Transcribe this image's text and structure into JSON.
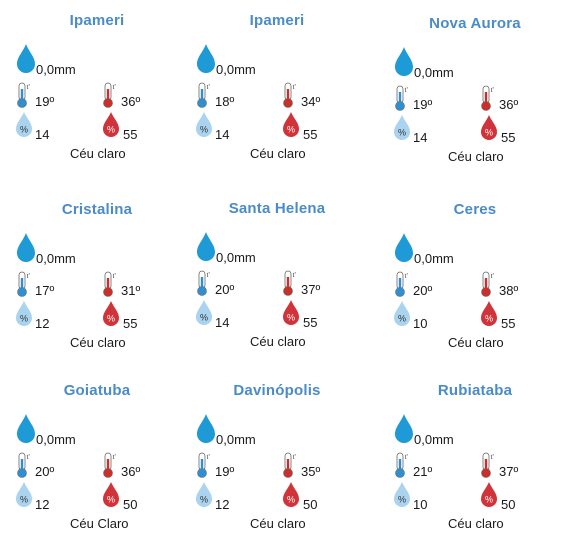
{
  "colors": {
    "title": "#4a8bc8",
    "rain": "#1e9ad6",
    "cold": "#2f8fd0",
    "hot": "#c9302c",
    "humidity_low": "#a9d3ee",
    "humidity_high": "#d0343a"
  },
  "rain_icon": "raindrop-icon",
  "thermo_min_icon": "thermometer-cold-icon",
  "thermo_max_icon": "thermometer-hot-icon",
  "humidity_min_icon": "humidity-low-icon",
  "humidity_max_icon": "humidity-high-icon",
  "thermo_mark": "t'",
  "percent_mark": "%",
  "cities": [
    {
      "name": "Ipameri",
      "rain": "0,0mm",
      "tmin": "19º",
      "tmax": "36º",
      "hmin": "14",
      "hmax": "55",
      "cond": "Céu claro"
    },
    {
      "name": "Ipameri",
      "rain": "0,0mm",
      "tmin": "18º",
      "tmax": "34º",
      "hmin": "14",
      "hmax": "55",
      "cond": "Céu claro"
    },
    {
      "name": "Nova Aurora",
      "rain": "0,0mm",
      "tmin": "19º",
      "tmax": "36º",
      "hmin": "14",
      "hmax": "55",
      "cond": "Céu claro"
    },
    {
      "name": "Cristalina",
      "rain": "0,0mm",
      "tmin": "17º",
      "tmax": "31º",
      "hmin": "12",
      "hmax": "55",
      "cond": "Céu claro"
    },
    {
      "name": "Santa Helena",
      "rain": "0,0mm",
      "tmin": "20º",
      "tmax": "37º",
      "hmin": "14",
      "hmax": "55",
      "cond": "Céu claro"
    },
    {
      "name": "Ceres",
      "rain": "0,0mm",
      "tmin": "20º",
      "tmax": "38º",
      "hmin": "10",
      "hmax": "55",
      "cond": "Céu claro"
    },
    {
      "name": "Goiatuba",
      "rain": "0,0mm",
      "tmin": "20º",
      "tmax": "36º",
      "hmin": "12",
      "hmax": "50",
      "cond": "Céu Claro"
    },
    {
      "name": "Davinópolis",
      "rain": "0,0mm",
      "tmin": "19º",
      "tmax": "35º",
      "hmin": "12",
      "hmax": "50",
      "cond": "Céu claro"
    },
    {
      "name": "Rubiataba",
      "rain": "0,0mm",
      "tmin": "21º",
      "tmax": "37º",
      "hmin": "10",
      "hmax": "50",
      "cond": "Céu claro"
    }
  ]
}
